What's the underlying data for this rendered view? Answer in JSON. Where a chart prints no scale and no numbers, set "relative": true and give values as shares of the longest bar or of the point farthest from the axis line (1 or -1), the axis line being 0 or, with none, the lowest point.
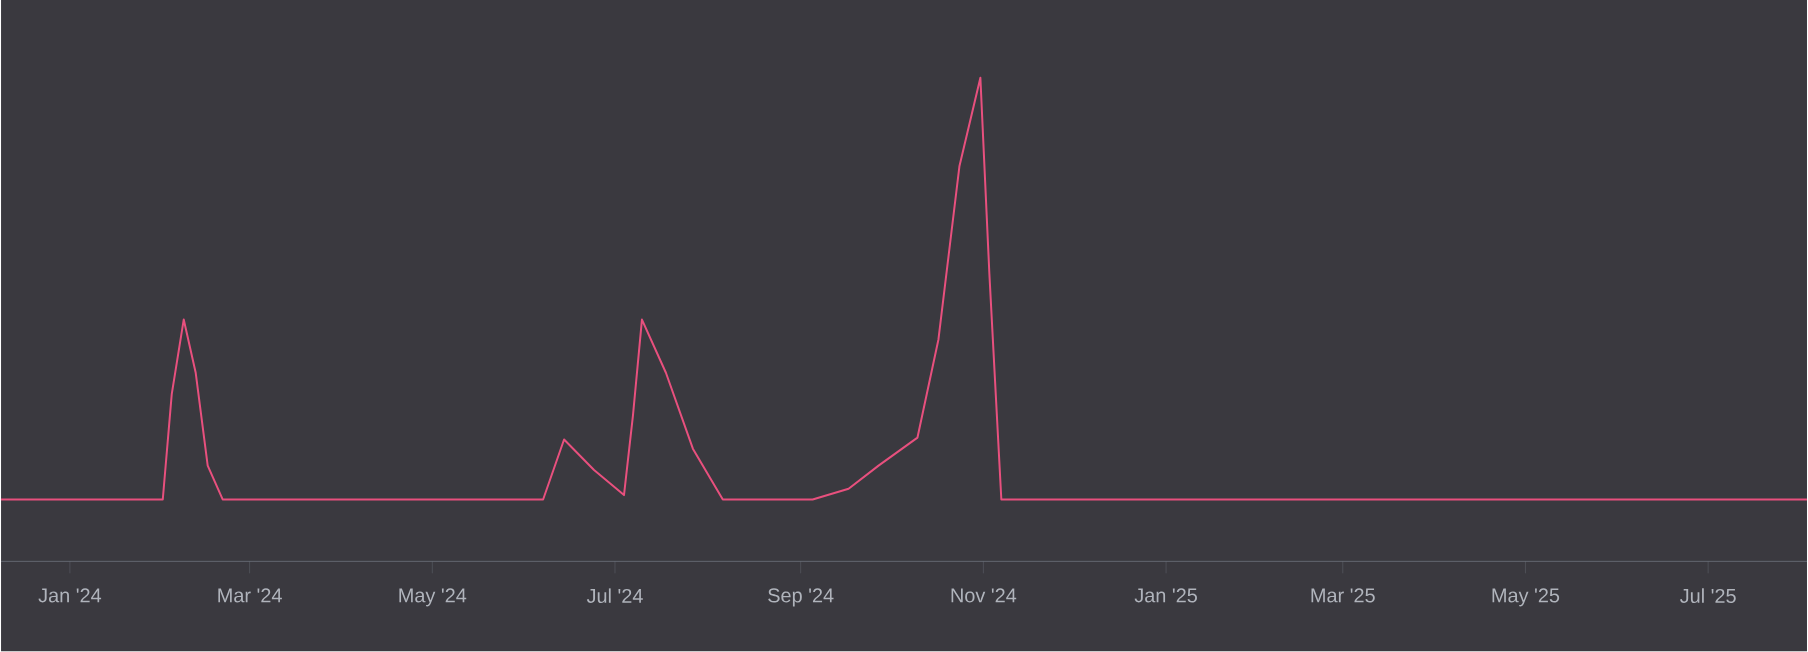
{
  "chart_data": {
    "type": "line",
    "relative": true,
    "color": "#e8507e",
    "x": [
      "2023-12-09",
      "2024-02-01",
      "2024-02-04",
      "2024-02-08",
      "2024-02-12",
      "2024-02-16",
      "2024-02-21",
      "2024-06-07",
      "2024-06-14",
      "2024-06-24",
      "2024-07-04",
      "2024-07-07",
      "2024-07-10",
      "2024-07-18",
      "2024-07-27",
      "2024-08-06",
      "2024-09-05",
      "2024-09-17",
      "2024-09-27",
      "2024-10-10",
      "2024-10-17",
      "2024-10-24",
      "2024-10-31",
      "2024-11-03",
      "2024-11-07",
      "2025-08-03"
    ],
    "values": [
      0.128,
      0.128,
      0.346,
      0.5,
      0.39,
      0.198,
      0.128,
      0.128,
      0.252,
      0.189,
      0.137,
      0.302,
      0.5,
      0.39,
      0.233,
      0.128,
      0.128,
      0.15,
      0.198,
      0.256,
      0.459,
      0.817,
      1,
      0.595,
      0.128,
      0.128
    ],
    "xlim": [
      "2023-12-09",
      "2025-08-03"
    ],
    "xticks": [
      {
        "value": "2024-01-01",
        "label": "Jan '24"
      },
      {
        "value": "2024-03-01",
        "label": "Mar '24"
      },
      {
        "value": "2024-05-01",
        "label": "May '24"
      },
      {
        "value": "2024-07-01",
        "label": "Jul '24"
      },
      {
        "value": "2024-09-01",
        "label": "Sep '24"
      },
      {
        "value": "2024-11-01",
        "label": "Nov '24"
      },
      {
        "value": "2025-01-01",
        "label": "Jan '25"
      },
      {
        "value": "2025-03-01",
        "label": "Mar '25"
      },
      {
        "value": "2025-05-01",
        "label": "May '25"
      },
      {
        "value": "2025-07-01",
        "label": "Jul '25"
      }
    ]
  }
}
